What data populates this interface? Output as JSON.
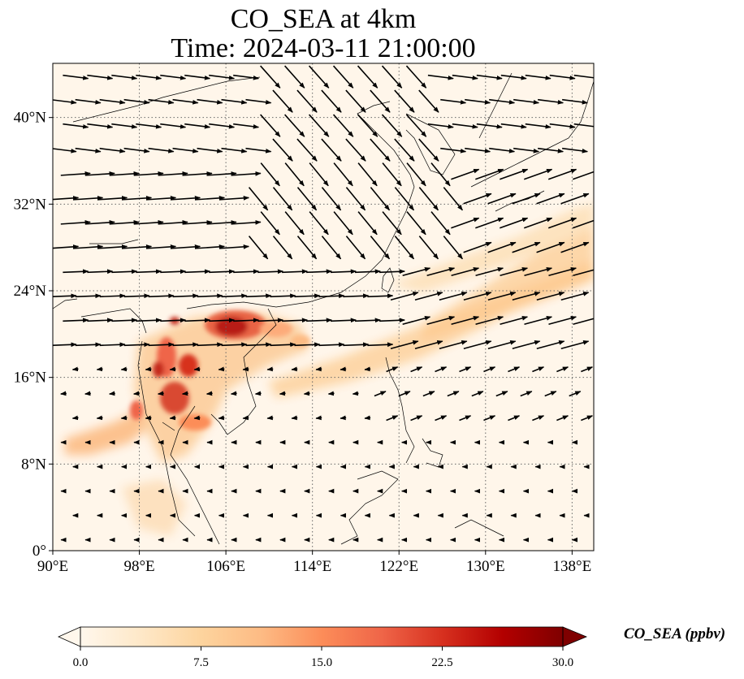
{
  "title": {
    "line1": "CO_SEA at 4km",
    "line2": "Time: 2024-03-11 21:00:00"
  },
  "map": {
    "extent": {
      "lon": [
        90,
        140
      ],
      "lat": [
        0,
        45
      ]
    },
    "lon_ticks": [
      "90°E",
      "98°E",
      "106°E",
      "114°E",
      "122°E",
      "130°E",
      "138°E"
    ],
    "lat_ticks": [
      "0°",
      "8°N",
      "16°N",
      "24°N",
      "32°N",
      "40°N"
    ],
    "gridlines": "dotted",
    "quantity": "CO_SEA",
    "vectors": "wind arrows (black)"
  },
  "colorbar": {
    "label": "CO_SEA (ppbv)",
    "ticks": [
      "0.0",
      "7.5",
      "15.0",
      "22.5",
      "30.0"
    ],
    "min": 0,
    "max": 30,
    "colormap": "OrRd",
    "extend": "both",
    "colors": [
      "#fff7ec",
      "#fee8c8",
      "#fdd49e",
      "#fdbb84",
      "#fc8d59",
      "#ef6548",
      "#d7301f",
      "#b30000",
      "#7f0000"
    ]
  }
}
